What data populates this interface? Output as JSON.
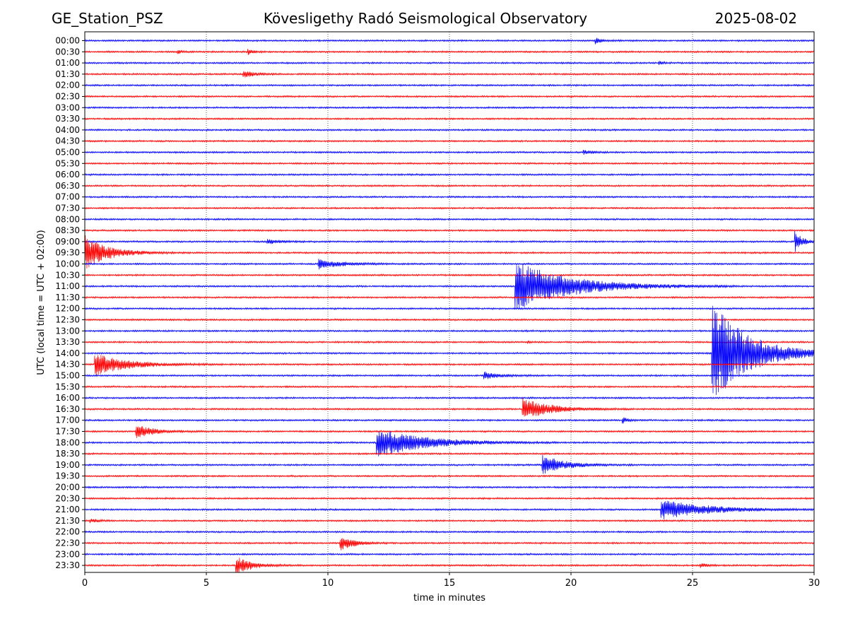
{
  "header": {
    "station": "GE_Station_PSZ",
    "observatory": "Kövesligethy Radó Seismological Observatory",
    "date": "2025-08-02"
  },
  "chart_data": {
    "type": "line",
    "title": "Kövesligethy Radó Seismological Observatory",
    "xlabel": "time in minutes",
    "ylabel": "UTC (local time = UTC + 02:00)",
    "xlim": [
      0,
      30
    ],
    "xticks": [
      0,
      5,
      10,
      15,
      20,
      25,
      30
    ],
    "grid": "vertical dotted lines at x ticks",
    "row_labels": [
      "00:00",
      "00:30",
      "01:00",
      "01:30",
      "02:00",
      "02:30",
      "03:00",
      "03:30",
      "04:00",
      "04:30",
      "05:00",
      "05:30",
      "06:00",
      "06:30",
      "07:00",
      "07:30",
      "08:00",
      "08:30",
      "09:00",
      "09:30",
      "10:00",
      "10:30",
      "11:00",
      "11:30",
      "12:00",
      "12:30",
      "13:00",
      "13:30",
      "14:00",
      "14:30",
      "15:00",
      "15:30",
      "16:00",
      "16:30",
      "17:00",
      "17:30",
      "18:00",
      "18:30",
      "19:00",
      "19:30",
      "20:00",
      "20:30",
      "21:00",
      "21:30",
      "22:00",
      "22:30",
      "23:00",
      "23:30"
    ],
    "trace_colors": [
      "#0000ff",
      "#ff0000"
    ],
    "events": [
      {
        "row": 0,
        "start": 21.0,
        "amp": 0.25,
        "dur": 0.8
      },
      {
        "row": 1,
        "start": 6.7,
        "amp": 0.3,
        "dur": 0.5
      },
      {
        "row": 1,
        "start": 3.8,
        "amp": 0.2,
        "dur": 0.5
      },
      {
        "row": 2,
        "start": 23.6,
        "amp": 0.2,
        "dur": 0.5
      },
      {
        "row": 3,
        "start": 6.5,
        "amp": 0.35,
        "dur": 1.2
      },
      {
        "row": 10,
        "start": 20.5,
        "amp": 0.2,
        "dur": 1.0
      },
      {
        "row": 18,
        "start": 7.5,
        "amp": 0.2,
        "dur": 1.5
      },
      {
        "row": 18,
        "start": 29.2,
        "amp": 1.0,
        "dur": 0.8
      },
      {
        "row": 19,
        "start": 0.0,
        "amp": 1.6,
        "dur": 2.5
      },
      {
        "row": 20,
        "start": 9.6,
        "amp": 0.45,
        "dur": 2.5
      },
      {
        "row": 22,
        "start": 17.7,
        "amp": 2.3,
        "dur": 6.0
      },
      {
        "row": 27,
        "start": 18.2,
        "amp": 0.15,
        "dur": 0.3
      },
      {
        "row": 28,
        "start": 25.8,
        "amp": 4.6,
        "dur": 4.2
      },
      {
        "row": 29,
        "start": 0.4,
        "amp": 1.0,
        "dur": 3.5
      },
      {
        "row": 30,
        "start": 16.4,
        "amp": 0.35,
        "dur": 1.6
      },
      {
        "row": 33,
        "start": 18.0,
        "amp": 1.0,
        "dur": 3.0
      },
      {
        "row": 34,
        "start": 22.1,
        "amp": 0.3,
        "dur": 0.6
      },
      {
        "row": 35,
        "start": 2.1,
        "amp": 0.7,
        "dur": 1.8
      },
      {
        "row": 36,
        "start": 12.0,
        "amp": 1.4,
        "dur": 5.0
      },
      {
        "row": 38,
        "start": 18.8,
        "amp": 0.9,
        "dur": 2.5
      },
      {
        "row": 42,
        "start": 23.7,
        "amp": 0.9,
        "dur": 5.0
      },
      {
        "row": 43,
        "start": 0.2,
        "amp": 0.2,
        "dur": 0.8
      },
      {
        "row": 45,
        "start": 10.5,
        "amp": 0.7,
        "dur": 1.5
      },
      {
        "row": 47,
        "start": 6.2,
        "amp": 0.8,
        "dur": 1.8
      },
      {
        "row": 47,
        "start": 25.3,
        "amp": 0.2,
        "dur": 0.8
      }
    ]
  }
}
